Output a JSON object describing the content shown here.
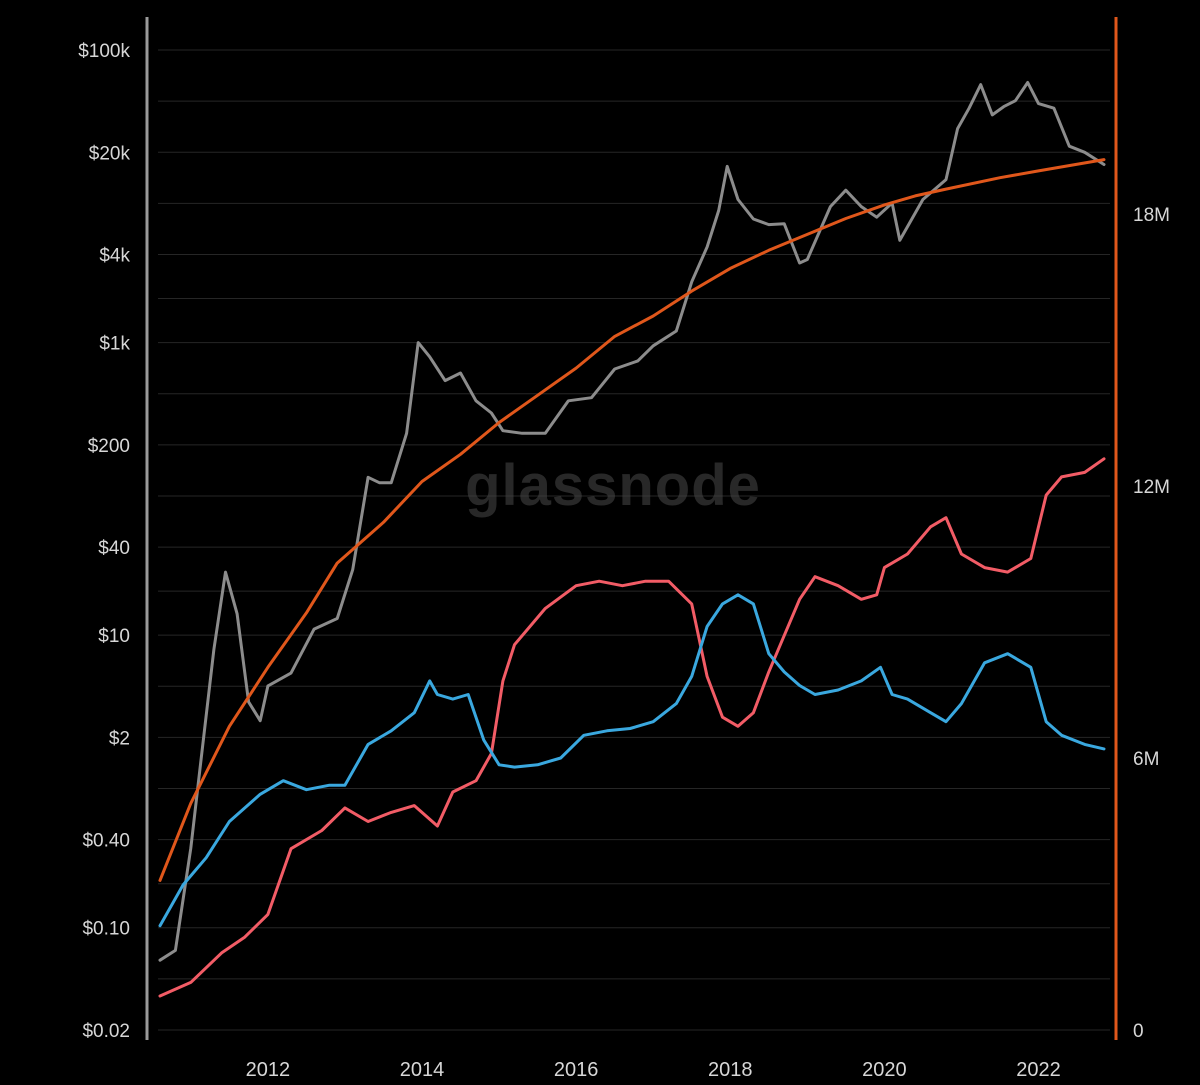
{
  "watermark": "glassnode",
  "chart_data": {
    "type": "line",
    "title": "",
    "xlabel": "",
    "ylabel": "",
    "x_ticks": [
      "2012",
      "2014",
      "2016",
      "2018",
      "2020",
      "2022"
    ],
    "y_left": {
      "scale": "log",
      "range": [
        0.02,
        100000
      ],
      "tick_labels": [
        "$100k",
        "$20k",
        "$4k",
        "$1k",
        "$200",
        "$40",
        "$10",
        "$2",
        "$0.40",
        "$0.10",
        "$0.02"
      ],
      "tick_values": [
        100000,
        20000,
        4000,
        1000,
        200,
        40,
        10,
        2,
        0.4,
        0.1,
        0.02
      ]
    },
    "y_right": {
      "scale": "linear",
      "range": [
        0,
        22500000
      ],
      "tick_labels": [
        "18M",
        "12M",
        "6M",
        "0"
      ],
      "tick_values": [
        18000000,
        12000000,
        6000000,
        0
      ]
    },
    "grid": true,
    "legend": "none",
    "colors": {
      "price": "#8c8c8c",
      "supply": "#e0571b",
      "red": "#f25c66",
      "blue": "#3aa8df",
      "left_axis": "#9a9a9a",
      "right_axis": "#e0571b"
    },
    "series": [
      {
        "key": "price",
        "axis": "left",
        "x": [
          2010.6,
          2010.8,
          2011.0,
          2011.1,
          2011.3,
          2011.45,
          2011.6,
          2011.75,
          2011.9,
          2012.0,
          2012.3,
          2012.6,
          2012.9,
          2013.1,
          2013.3,
          2013.45,
          2013.6,
          2013.8,
          2013.95,
          2014.1,
          2014.3,
          2014.5,
          2014.7,
          2014.9,
          2015.05,
          2015.3,
          2015.6,
          2015.9,
          2016.2,
          2016.5,
          2016.8,
          2017.0,
          2017.3,
          2017.5,
          2017.7,
          2017.85,
          2017.96,
          2018.1,
          2018.3,
          2018.5,
          2018.7,
          2018.9,
          2019.0,
          2019.3,
          2019.5,
          2019.7,
          2019.9,
          2020.1,
          2020.2,
          2020.5,
          2020.8,
          2020.95,
          2021.1,
          2021.25,
          2021.4,
          2021.55,
          2021.7,
          2021.86,
          2022.0,
          2022.2,
          2022.4,
          2022.6,
          2022.85
        ],
        "y": [
          0.06,
          0.07,
          0.35,
          1.0,
          8.0,
          27.0,
          14.0,
          3.5,
          2.6,
          4.5,
          5.5,
          11.0,
          13.0,
          28.0,
          120.0,
          110.0,
          110.0,
          240.0,
          1000.0,
          800.0,
          550.0,
          620.0,
          400.0,
          330.0,
          250.0,
          240.0,
          240.0,
          400.0,
          420.0,
          660.0,
          750.0,
          950.0,
          1200.0,
          2600.0,
          4500.0,
          8000.0,
          16000.0,
          9500.0,
          7000.0,
          6400.0,
          6500.0,
          3500.0,
          3700.0,
          8500.0,
          11000.0,
          8500.0,
          7200.0,
          9000.0,
          5000.0,
          9500.0,
          13000.0,
          29000.0,
          40000.0,
          58000.0,
          36000.0,
          41000.0,
          45000.0,
          60000.0,
          43000.0,
          40000.0,
          22000.0,
          20000.0,
          16500.0
        ]
      },
      {
        "key": "supply",
        "axis": "right",
        "x": [
          2010.6,
          2011.0,
          2011.5,
          2012.0,
          2012.5,
          2012.9,
          2013.5,
          2014.0,
          2014.5,
          2015.0,
          2015.5,
          2016.0,
          2016.5,
          2017.0,
          2017.5,
          2018.0,
          2018.5,
          2019.0,
          2019.5,
          2020.0,
          2020.4,
          2020.8,
          2021.5,
          2022.0,
          2022.85
        ],
        "y": [
          3300000,
          5000000,
          6700000,
          8000000,
          9200000,
          10300000,
          11200000,
          12100000,
          12700000,
          13400000,
          14000000,
          14600000,
          15300000,
          15750000,
          16300000,
          16800000,
          17200000,
          17550000,
          17900000,
          18200000,
          18400000,
          18550000,
          18800000,
          18950000,
          19200000
        ]
      },
      {
        "key": "red",
        "axis": "right",
        "x": [
          2010.6,
          2011.0,
          2011.4,
          2011.7,
          2012.0,
          2012.3,
          2012.7,
          2013.0,
          2013.3,
          2013.6,
          2013.9,
          2014.2,
          2014.4,
          2014.7,
          2014.9,
          2015.05,
          2015.2,
          2015.6,
          2016.0,
          2016.3,
          2016.6,
          2016.9,
          2017.2,
          2017.5,
          2017.7,
          2017.9,
          2018.1,
          2018.3,
          2018.5,
          2018.7,
          2018.9,
          2019.1,
          2019.4,
          2019.7,
          2019.9,
          2020.0,
          2020.3,
          2020.6,
          2020.8,
          2021.0,
          2021.3,
          2021.6,
          2021.9,
          2022.1,
          2022.3,
          2022.6,
          2022.85
        ],
        "y": [
          750000,
          1050000,
          1700000,
          2050000,
          2550000,
          4000000,
          4400000,
          4900000,
          4600000,
          4800000,
          4950000,
          4500000,
          5250000,
          5500000,
          6100000,
          7700000,
          8500000,
          9300000,
          9800000,
          9900000,
          9800000,
          9900000,
          9900000,
          9400000,
          7800000,
          6900000,
          6700000,
          7000000,
          7900000,
          8700000,
          9500000,
          10000000,
          9800000,
          9500000,
          9600000,
          10200000,
          10500000,
          11100000,
          11300000,
          10500000,
          10200000,
          10100000,
          10400000,
          11800000,
          12200000,
          12300000,
          12600000
        ]
      },
      {
        "key": "blue",
        "axis": "right",
        "x": [
          2010.6,
          2010.9,
          2011.2,
          2011.5,
          2011.9,
          2012.2,
          2012.5,
          2012.8,
          2013.0,
          2013.3,
          2013.6,
          2013.9,
          2014.1,
          2014.2,
          2014.4,
          2014.6,
          2014.8,
          2015.0,
          2015.2,
          2015.5,
          2015.8,
          2016.1,
          2016.4,
          2016.7,
          2017.0,
          2017.3,
          2017.5,
          2017.7,
          2017.9,
          2018.1,
          2018.3,
          2018.5,
          2018.7,
          2018.9,
          2019.1,
          2019.4,
          2019.7,
          2019.95,
          2020.1,
          2020.3,
          2020.6,
          2020.8,
          2021.0,
          2021.3,
          2021.6,
          2021.9,
          2022.1,
          2022.3,
          2022.6,
          2022.85
        ],
        "y": [
          2300000,
          3200000,
          3800000,
          4600000,
          5200000,
          5500000,
          5300000,
          5400000,
          5400000,
          6300000,
          6600000,
          7000000,
          7700000,
          7400000,
          7300000,
          7400000,
          6400000,
          5850000,
          5800000,
          5850000,
          6000000,
          6500000,
          6600000,
          6650000,
          6800000,
          7200000,
          7800000,
          8900000,
          9400000,
          9600000,
          9400000,
          8300000,
          7900000,
          7600000,
          7400000,
          7500000,
          7700000,
          8000000,
          7400000,
          7300000,
          7000000,
          6800000,
          7200000,
          8100000,
          8300000,
          8000000,
          6800000,
          6500000,
          6300000,
          6200000
        ]
      }
    ]
  }
}
